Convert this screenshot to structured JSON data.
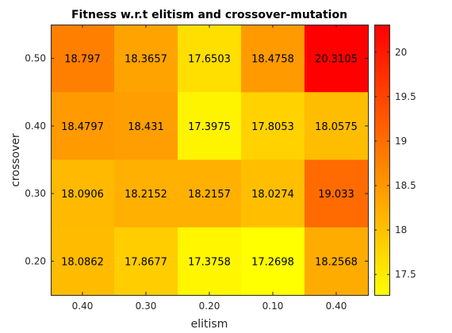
{
  "chart_data": {
    "type": "heatmap",
    "title": "Fitness w.r.t elitism and crossover-mutation",
    "xlabel": "elitism",
    "ylabel": "crossover",
    "x_categories": [
      "0.40",
      "0.30",
      "0.20",
      "0.10",
      "0.40"
    ],
    "y_categories": [
      "0.50",
      "0.40",
      "0.30",
      "0.20"
    ],
    "values": [
      [
        18.797,
        18.3657,
        17.6503,
        18.4758,
        20.3105
      ],
      [
        18.4797,
        18.431,
        17.3975,
        17.8053,
        18.0575
      ],
      [
        18.0906,
        18.2152,
        18.2157,
        18.0274,
        19.033
      ],
      [
        18.0862,
        17.8677,
        17.3758,
        17.2698,
        18.2568
      ]
    ],
    "value_labels": [
      [
        "18.797",
        "18.3657",
        "17.6503",
        "18.4758",
        "20.3105"
      ],
      [
        "18.4797",
        "18.431",
        "17.3975",
        "17.8053",
        "18.0575"
      ],
      [
        "18.0906",
        "18.2152",
        "18.2157",
        "18.0274",
        "19.033"
      ],
      [
        "18.0862",
        "17.8677",
        "17.3758",
        "17.2698",
        "18.2568"
      ]
    ],
    "colorbar": {
      "colormap": "autumn (reversed: yellow = low, red = high)",
      "range": [
        17.2698,
        20.3105
      ],
      "ticks": [
        17.5,
        18,
        18.5,
        19,
        19.5,
        20
      ],
      "tick_labels": [
        "17.5",
        "18",
        "18.5",
        "19",
        "19.5",
        "20"
      ]
    },
    "colors": {
      "low": "#ffff00",
      "high": "#ff0000"
    },
    "grid": false,
    "legend": "none"
  }
}
